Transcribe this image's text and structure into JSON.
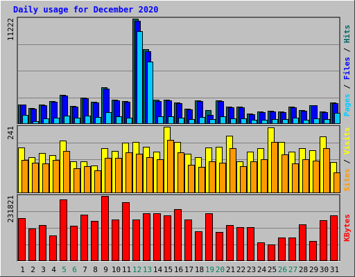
{
  "chart_data": {
    "type": "bar",
    "title": "Daily usage for December 2020",
    "categories": [
      "1",
      "2",
      "3",
      "4",
      "5",
      "6",
      "7",
      "8",
      "9",
      "10",
      "11",
      "12",
      "13",
      "14",
      "15",
      "16",
      "17",
      "18",
      "19",
      "20",
      "21",
      "22",
      "23",
      "24",
      "25",
      "26",
      "27",
      "28",
      "29",
      "30",
      "31"
    ],
    "weekend_days": [
      "5",
      "6",
      "12",
      "13",
      "19",
      "20",
      "26",
      "27"
    ],
    "panels": [
      {
        "id": "hits",
        "ymax_label": "11222",
        "ylim": [
          0,
          11222
        ],
        "grid": true,
        "series": [
          {
            "name": "Hits",
            "color": "#006666",
            "values": [
              2070,
              1700,
              2060,
              2440,
              3130,
              1930,
              2820,
              2370,
              3880,
              2590,
              2410,
              11222,
              7960,
              2560,
              2580,
              2310,
              1610,
              2530,
              1500,
              2500,
              1830,
              1880,
              1080,
              1330,
              1380,
              1330,
              1880,
              1470,
              2030,
              1330,
              2300
            ]
          },
          {
            "name": "Files",
            "color": "#0000ff",
            "values": [
              2070,
              1630,
              2010,
              2340,
              3050,
              1850,
              2750,
              2320,
              3770,
              2520,
              2340,
              11000,
              7730,
              2470,
              2490,
              2220,
              1540,
              2440,
              940,
              2420,
              1770,
              1800,
              1030,
              1280,
              1320,
              1280,
              1790,
              1410,
              1970,
              1280,
              2200
            ]
          },
          {
            "name": "Pages",
            "color": "#00ccff",
            "values": [
              940,
              330,
              560,
              670,
              880,
              660,
              850,
              720,
              1240,
              790,
              690,
              9900,
              6640,
              780,
              800,
              670,
              500,
              730,
              530,
              780,
              560,
              590,
              420,
              430,
              520,
              480,
              650,
              460,
              590,
              480,
              1180
            ]
          }
        ]
      },
      {
        "id": "visits",
        "ymax_label": "241",
        "ylim": [
          0,
          241
        ],
        "grid": true,
        "series": [
          {
            "name": "Visits",
            "color": "#ffff00",
            "values": [
              165,
              130,
              145,
              138,
              192,
              116,
              115,
              100,
              164,
              153,
              183,
              187,
              168,
              150,
              241,
              185,
              144,
              130,
              166,
              168,
              208,
              116,
              150,
              163,
              238,
              185,
              151,
              162,
              155,
              205,
              113
            ]
          },
          {
            "name": "Sites",
            "color": "#ff9900",
            "values": [
              121,
              110,
              108,
              121,
              153,
              90,
              98,
              83,
              128,
              129,
              148,
              142,
              130,
              122,
              194,
              147,
              103,
              96,
              116,
              110,
              162,
              98,
              116,
              123,
              186,
              140,
              107,
              124,
              118,
              163,
              75
            ]
          }
        ]
      },
      {
        "id": "kbytes",
        "ymax_label": "231821",
        "ylim": [
          0,
          231821
        ],
        "grid": true,
        "series": [
          {
            "name": "KBytes",
            "color": "#ff0000",
            "values": [
              152315,
              116020,
              128470,
              92190,
              220040,
              124600,
              166200,
              142300,
              231821,
              146800,
              208400,
              148900,
              170600,
              171200,
              162230,
              185110,
              147600,
              107100,
              170600,
              103840,
              128600,
              122000,
              122000,
              66200,
              59050,
              84200,
              84800,
              130500,
              72000,
              145200,
              163880
            ]
          }
        ]
      }
    ],
    "right_labels": [
      {
        "parts": [
          {
            "text": "Pages",
            "color": "#00ccff"
          },
          {
            "text": " / ",
            "color": "#000000"
          },
          {
            "text": "Files",
            "color": "#0000ff"
          },
          {
            "text": " / ",
            "color": "#000000"
          },
          {
            "text": "Hits",
            "color": "#006666"
          }
        ]
      },
      {
        "parts": [
          {
            "text": "Sites",
            "color": "#ff9900"
          },
          {
            "text": " / ",
            "color": "#000000"
          },
          {
            "text": "Visits",
            "color": "#ffff00"
          }
        ]
      },
      {
        "parts": [
          {
            "text": "KBytes",
            "color": "#ff0000"
          }
        ]
      }
    ],
    "colors": {
      "background": "#c0c0c0",
      "title": "#0000ff",
      "weekday_label": "#000000",
      "weekend_label": "#00805c",
      "bar_outline": "#000000",
      "grid": "#808080"
    }
  }
}
